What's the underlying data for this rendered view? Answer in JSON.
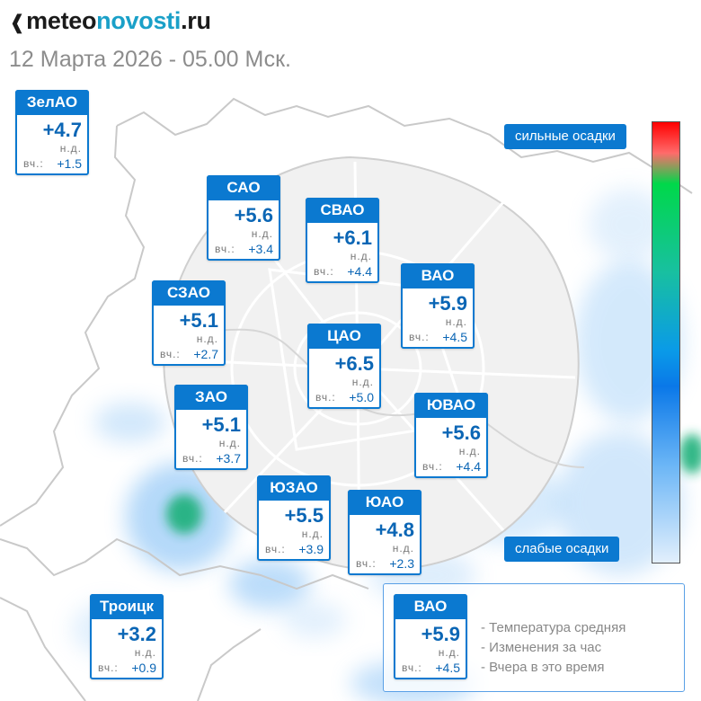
{
  "header": {
    "logo_plain": "meteo",
    "logo_accent": "novosti",
    "logo_tail": ".ru",
    "datetime": "12 Марта 2026 - 05.00 Мск."
  },
  "districts": [
    {
      "name": "ЗелАО",
      "temp": "+4.7",
      "nd": "н.д.",
      "vch_label": "вч.:",
      "vch": "+1.5"
    },
    {
      "name": "САО",
      "temp": "+5.6",
      "nd": "н.д.",
      "vch_label": "вч.:",
      "vch": "+3.4"
    },
    {
      "name": "СВАО",
      "temp": "+6.1",
      "nd": "н.д.",
      "vch_label": "вч.:",
      "vch": "+4.4"
    },
    {
      "name": "ВАО",
      "temp": "+5.9",
      "nd": "н.д.",
      "vch_label": "вч.:",
      "vch": "+4.5"
    },
    {
      "name": "СЗАО",
      "temp": "+5.1",
      "nd": "н.д.",
      "vch_label": "вч.:",
      "vch": "+2.7"
    },
    {
      "name": "ЦАО",
      "temp": "+6.5",
      "nd": "н.д.",
      "vch_label": "вч.:",
      "vch": "+5.0"
    },
    {
      "name": "ЗАО",
      "temp": "+5.1",
      "nd": "н.д.",
      "vch_label": "вч.:",
      "vch": "+3.7"
    },
    {
      "name": "ЮВАО",
      "temp": "+5.6",
      "nd": "н.д.",
      "vch_label": "вч.:",
      "vch": "+4.4"
    },
    {
      "name": "ЮЗАО",
      "temp": "+5.5",
      "nd": "н.д.",
      "vch_label": "вч.:",
      "vch": "+3.9"
    },
    {
      "name": "ЮАО",
      "temp": "+4.8",
      "nd": "н.д.",
      "vch_label": "вч.:",
      "vch": "+2.3"
    },
    {
      "name": "Троицк",
      "temp": "+3.2",
      "nd": "н.д.",
      "vch_label": "вч.:",
      "vch": "+0.9"
    }
  ],
  "precip_scale": {
    "strong_label": "сильные осадки",
    "weak_label": "слабые осадки",
    "colors": [
      "#ff0000",
      "#00d84a",
      "#0a9ae8",
      "#e2effc"
    ]
  },
  "legend": {
    "example": {
      "name": "ВАО",
      "temp": "+5.9",
      "nd": "н.д.",
      "vch_label": "вч.:",
      "vch": "+4.5"
    },
    "lines": [
      "- Температура средняя",
      "- Изменения за час",
      "- Вчера в это время"
    ]
  },
  "colors": {
    "accent": "#0b79d0",
    "value": "#0b66b5",
    "logo_accent": "#1aa0c8"
  }
}
